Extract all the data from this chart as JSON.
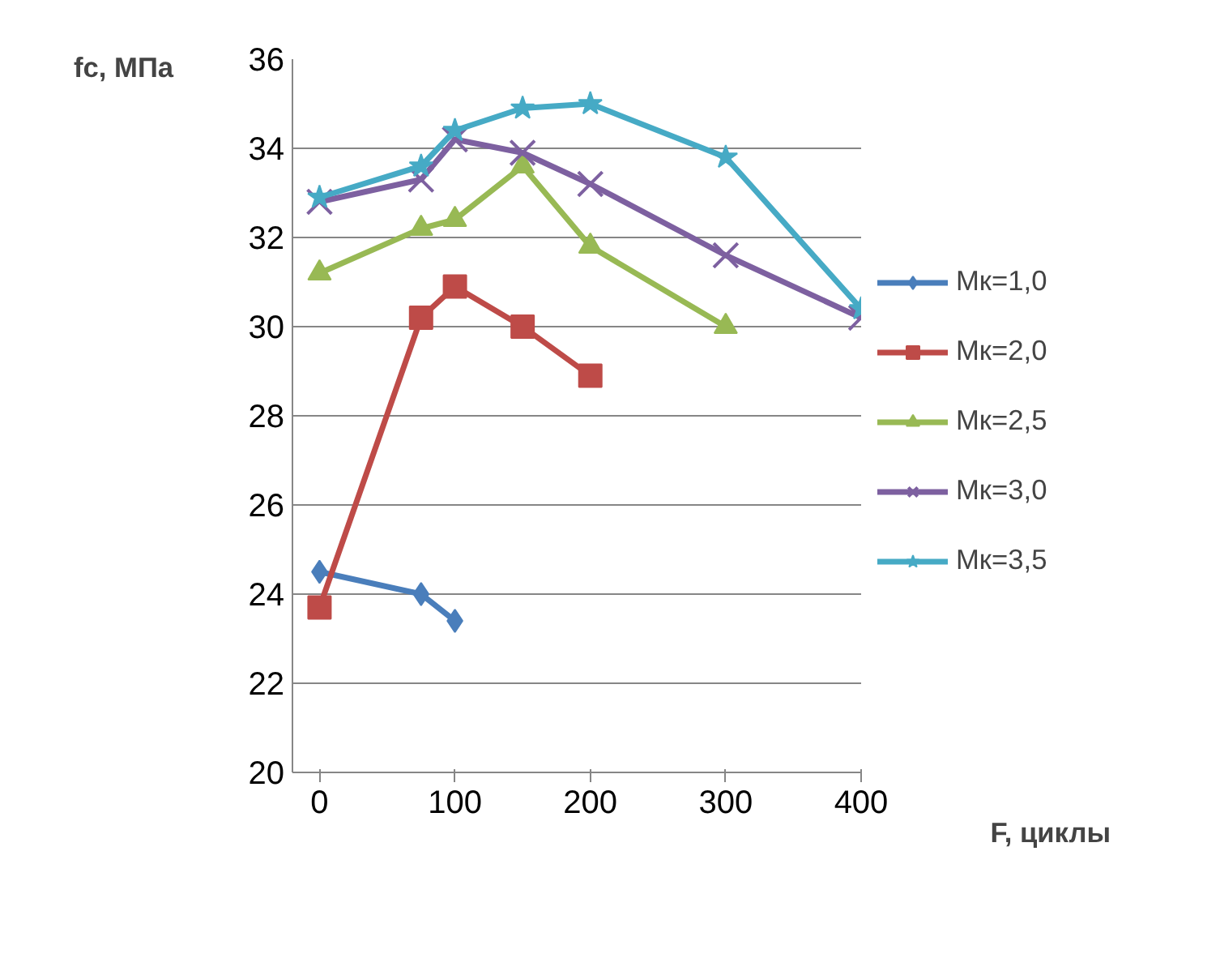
{
  "chart_data": {
    "type": "line",
    "xlabel": "F, циклы",
    "ylabel": "fc, МПа",
    "xlim": [
      -20,
      400
    ],
    "xticks": [
      0,
      100,
      200,
      300,
      400
    ],
    "ylim": [
      20,
      36
    ],
    "yticks": [
      20,
      22,
      24,
      26,
      28,
      30,
      32,
      34,
      36
    ],
    "grid": "y",
    "legend": "right",
    "line_style": "solid",
    "series": [
      {
        "name": "Мк=1,0",
        "color": "#4a7ebb",
        "marker": "diamond",
        "x": [
          0,
          75,
          100
        ],
        "values": [
          24.5,
          24.0,
          23.4
        ]
      },
      {
        "name": "Мк=2,0",
        "color": "#be4b48",
        "marker": "square",
        "x": [
          0,
          75,
          100,
          150,
          200
        ],
        "values": [
          23.7,
          30.2,
          30.9,
          30.0,
          28.9
        ]
      },
      {
        "name": "Мк=2,5",
        "color": "#98b954",
        "marker": "triangle",
        "x": [
          0,
          75,
          100,
          150,
          200,
          300
        ],
        "values": [
          31.2,
          32.2,
          32.4,
          33.6,
          31.8,
          30.0
        ]
      },
      {
        "name": "Мк=3,0",
        "color": "#7d60a0",
        "marker": "cross",
        "x": [
          0,
          75,
          100,
          150,
          200,
          300,
          400
        ],
        "values": [
          32.8,
          33.3,
          34.2,
          33.9,
          33.2,
          31.6,
          30.2
        ]
      },
      {
        "name": "Мк=3,5",
        "color": "#46aac5",
        "marker": "star",
        "x": [
          0,
          75,
          100,
          150,
          200,
          300,
          400
        ],
        "values": [
          32.9,
          33.6,
          34.4,
          34.9,
          35.0,
          33.8,
          30.4
        ]
      }
    ]
  }
}
